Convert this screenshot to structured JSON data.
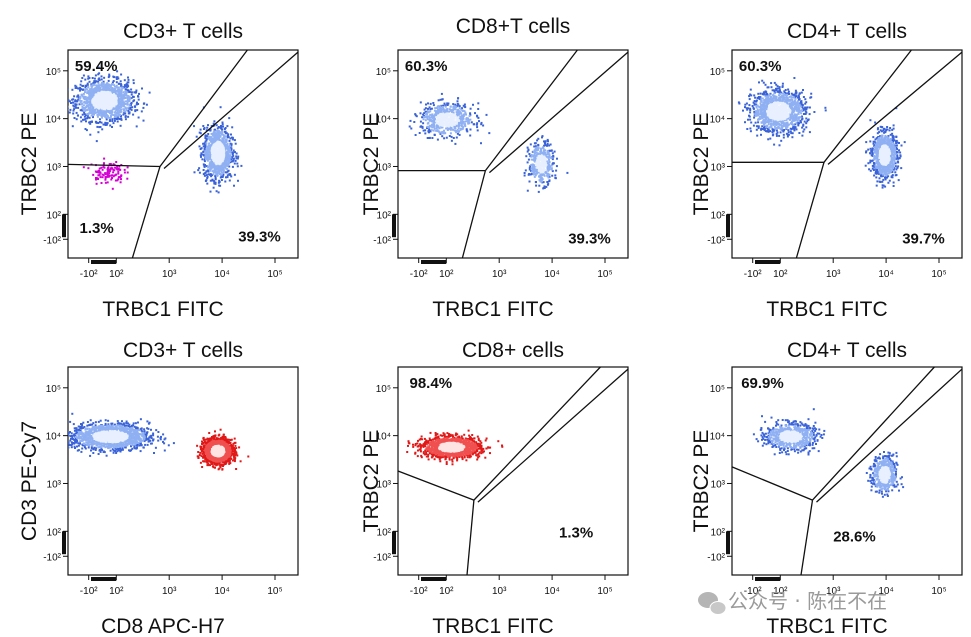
{
  "colors": {
    "blue_dense": "#3b63d8",
    "blue_core": "#e8f0ff",
    "red_dense": "#e01818",
    "magenta": "#d400d4",
    "gate": "#111111"
  },
  "watermark": {
    "icon": "wechat-icon",
    "text": "公众号 · 陈在不在"
  },
  "chart_data": [
    {
      "type": "scatter",
      "title": "CD3+ T cells",
      "xlabel": "TRBC1 FITC",
      "ylabel": "TRBC2 PE",
      "xticks": [
        "-10²",
        "10²",
        "10³",
        "10⁴",
        "10⁵"
      ],
      "yticks": [
        "-10²",
        "10²",
        "10³",
        "10⁴",
        "10⁵"
      ],
      "gates": [
        {
          "label": "59.4%",
          "position": "top-left"
        },
        {
          "label": "1.3%",
          "position": "bottom-left"
        },
        {
          "label": "39.3%",
          "position": "bottom-right"
        }
      ],
      "series": [
        {
          "color": "blue",
          "center": [
            10,
            25000
          ],
          "spread": [
            0.28,
            0.22
          ],
          "count": 1400
        },
        {
          "color": "blue",
          "center": [
            8000,
            2000
          ],
          "spread": [
            0.14,
            0.28
          ],
          "count": 1100
        },
        {
          "color": "magenta",
          "center": [
            30,
            800
          ],
          "spread": [
            0.16,
            0.12
          ],
          "count": 110
        }
      ]
    },
    {
      "type": "scatter",
      "title": "CD8+T cells",
      "xlabel": "TRBC1 FITC",
      "ylabel": "TRBC2 PE",
      "xticks": [
        "-10²",
        "10²",
        "10³",
        "10⁴",
        "10⁵"
      ],
      "yticks": [
        "-10²",
        "10²",
        "10³",
        "10⁴",
        "10⁵"
      ],
      "gates": [
        {
          "label": "60.3%",
          "position": "top-left"
        },
        {
          "label": "39.3%",
          "position": "bottom-right"
        }
      ],
      "series": [
        {
          "color": "blue",
          "center": [
            100,
            10000
          ],
          "spread": [
            0.26,
            0.17
          ],
          "count": 650
        },
        {
          "color": "blue",
          "center": [
            6000,
            1200
          ],
          "spread": [
            0.12,
            0.22
          ],
          "count": 420
        }
      ]
    },
    {
      "type": "scatter",
      "title": "CD4+ T cells",
      "xlabel": "TRBC1 FITC",
      "ylabel": "TRBC2 PE",
      "xticks": [
        "-10²",
        "10²",
        "10³",
        "10⁴",
        "10⁵"
      ],
      "yticks": [
        "-10²",
        "10²",
        "10³",
        "10⁴",
        "10⁵"
      ],
      "gates": [
        {
          "label": "60.3%",
          "position": "top-left"
        },
        {
          "label": "39.7%",
          "position": "bottom-right"
        }
      ],
      "series": [
        {
          "color": "blue",
          "center": [
            80,
            15000
          ],
          "spread": [
            0.26,
            0.22
          ],
          "count": 1300
        },
        {
          "color": "blue",
          "center": [
            9000,
            1800
          ],
          "spread": [
            0.12,
            0.24
          ],
          "count": 1000
        }
      ]
    },
    {
      "type": "scatter",
      "title": "CD3+ T cells",
      "xlabel": "CD8 APC-H7",
      "ylabel": "CD3 PE-Cy7",
      "xticks": [
        "-10²",
        "10²",
        "10³",
        "10⁴",
        "10⁵"
      ],
      "yticks": [
        "-10²",
        "10²",
        "10³",
        "10⁴",
        "10⁵"
      ],
      "gates": [],
      "series": [
        {
          "color": "blue",
          "center": [
            50,
            10000
          ],
          "spread": [
            0.38,
            0.14
          ],
          "count": 1500
        },
        {
          "color": "red",
          "center": [
            8000,
            5000
          ],
          "spread": [
            0.14,
            0.13
          ],
          "count": 1800
        }
      ]
    },
    {
      "type": "scatter",
      "title": "CD8+ cells",
      "xlabel": "TRBC1 FITC",
      "ylabel": "TRBC2 PE",
      "xticks": [
        "-10²",
        "10²",
        "10³",
        "10⁴",
        "10⁵"
      ],
      "yticks": [
        "-10²",
        "10²",
        "10³",
        "10⁴",
        "10⁵"
      ],
      "gates": [
        {
          "label": "98.4%",
          "position": "top-left"
        },
        {
          "label": "1.3%",
          "position": "bottom-right"
        }
      ],
      "series": [
        {
          "color": "red",
          "center": [
            120,
            6000
          ],
          "spread": [
            0.28,
            0.11
          ],
          "count": 1500
        }
      ]
    },
    {
      "type": "scatter",
      "title": "CD4+ T cells",
      "xlabel": "TRBC1 FITC",
      "ylabel": "TRBC2 PE",
      "xticks": [
        "-10²",
        "10²",
        "10³",
        "10⁴",
        "10⁵"
      ],
      "yticks": [
        "-10²",
        "10²",
        "10³",
        "10⁴",
        "10⁵"
      ],
      "gates": [
        {
          "label": "69.9%",
          "position": "top-left"
        },
        {
          "label": "28.6%",
          "position": "bottom-right"
        }
      ],
      "series": [
        {
          "color": "blue",
          "center": [
            150,
            10000
          ],
          "spread": [
            0.24,
            0.14
          ],
          "count": 750
        },
        {
          "color": "blue",
          "center": [
            9000,
            1600
          ],
          "spread": [
            0.12,
            0.2
          ],
          "count": 500
        }
      ]
    }
  ]
}
